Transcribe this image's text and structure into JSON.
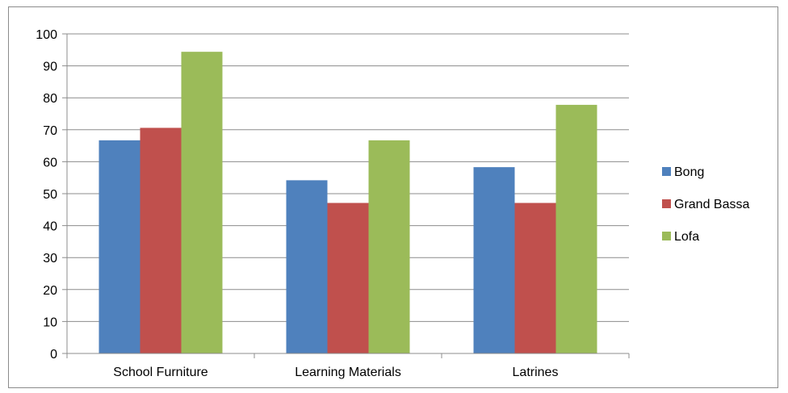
{
  "chart_data": {
    "type": "bar",
    "categories": [
      "School Furniture",
      "Learning Materials",
      "Latrines"
    ],
    "series": [
      {
        "name": "Bong",
        "values": [
          66.7,
          54.2,
          58.3
        ],
        "color": "#4f81bd"
      },
      {
        "name": "Grand Bassa",
        "values": [
          70.6,
          47.1,
          47.1
        ],
        "color": "#c0504d"
      },
      {
        "name": "Lofa",
        "values": [
          94.4,
          66.7,
          77.8
        ],
        "color": "#9bbb59"
      }
    ],
    "ylim": [
      0,
      100
    ],
    "yticks": [
      0,
      10,
      20,
      30,
      40,
      50,
      60,
      70,
      80,
      90,
      100
    ],
    "grid": true,
    "legend_position": "right"
  }
}
